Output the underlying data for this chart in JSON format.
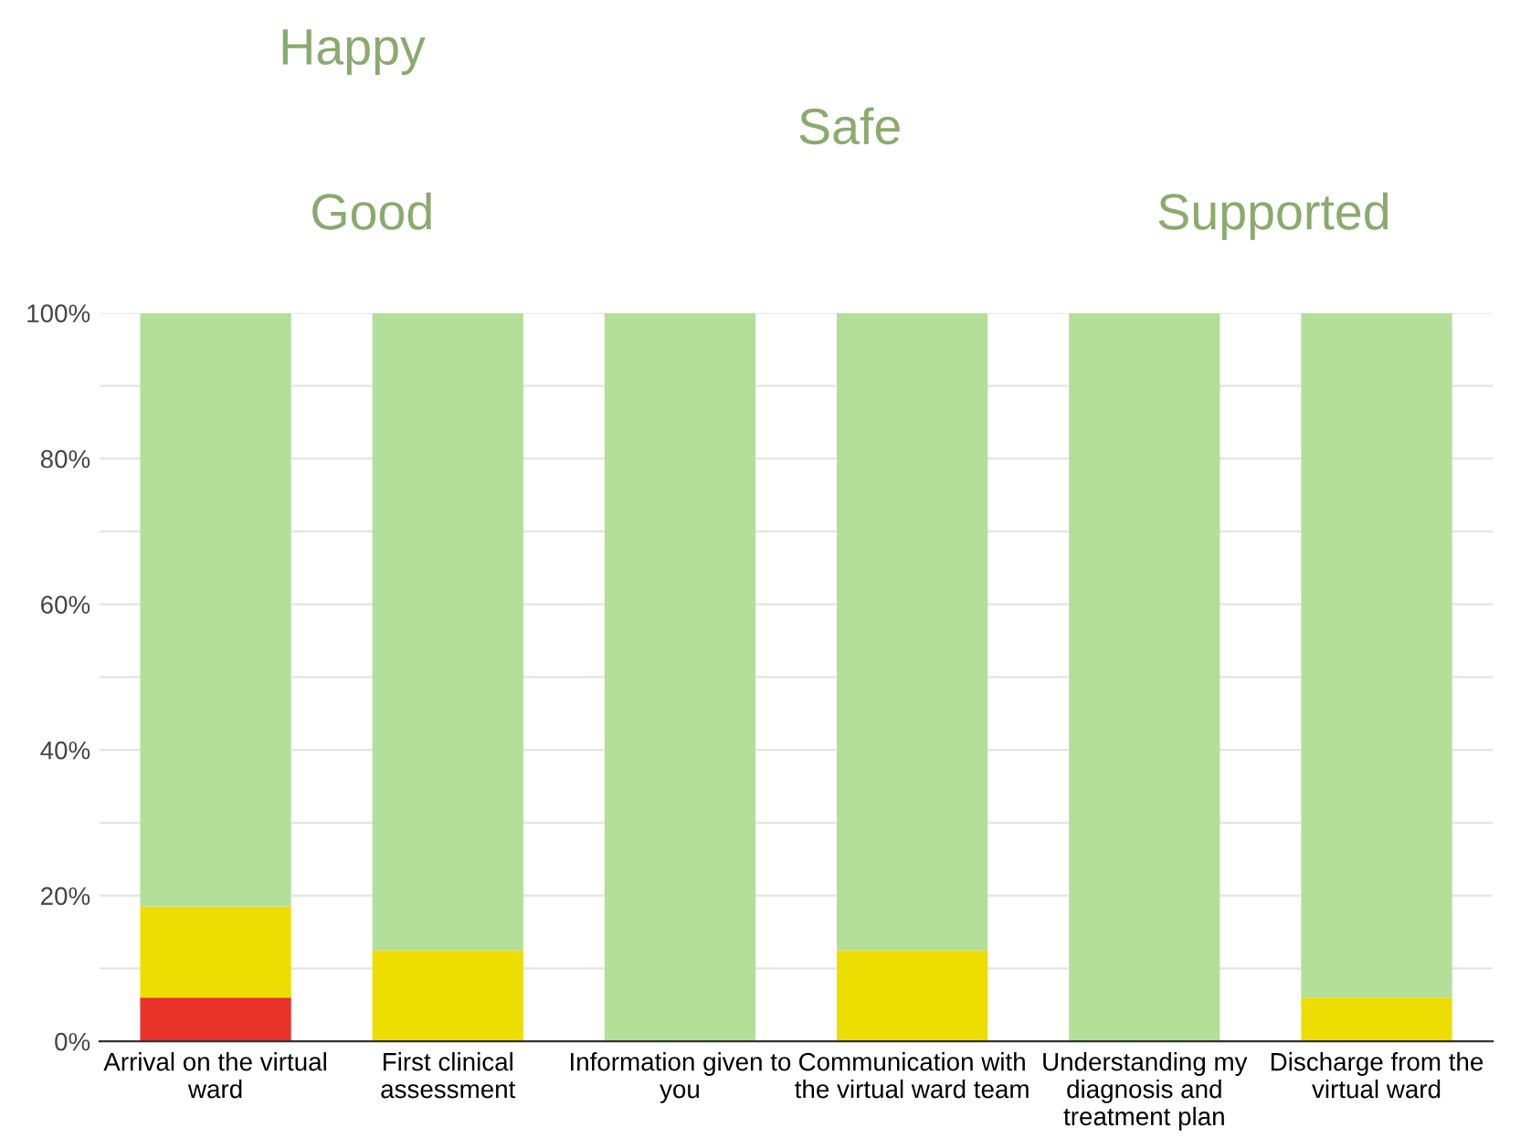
{
  "chart_data": {
    "type": "bar",
    "stacked": true,
    "categories": [
      "Arrival on the virtual ward",
      "First clinical assessment",
      "Information given to you",
      "Communication with the virtual ward team",
      "Understanding my diagnosis and treatment plan",
      "Discharge from the virtual ward"
    ],
    "series": [
      {
        "color": "#e8322a",
        "values": [
          6,
          0,
          0,
          0,
          0,
          0
        ]
      },
      {
        "color": "#eedd00",
        "values": [
          12.5,
          12.5,
          0,
          12.5,
          0,
          6
        ]
      },
      {
        "color": "#b3df98",
        "values": [
          81.5,
          87.5,
          100,
          87.5,
          100,
          94
        ]
      }
    ],
    "ylim": [
      0,
      100
    ],
    "yticks": [
      {
        "value": 0,
        "label": "0%"
      },
      {
        "value": 10,
        "label": null
      },
      {
        "value": 20,
        "label": "20%"
      },
      {
        "value": 30,
        "label": null
      },
      {
        "value": 40,
        "label": "40%"
      },
      {
        "value": 50,
        "label": null
      },
      {
        "value": 60,
        "label": "60%"
      },
      {
        "value": 70,
        "label": null
      },
      {
        "value": 80,
        "label": "80%"
      },
      {
        "value": 90,
        "label": null
      },
      {
        "value": 100,
        "label": "100%"
      }
    ],
    "grid": "y",
    "annotations": [
      "Happy",
      "Safe",
      "Good",
      "Supported"
    ]
  }
}
